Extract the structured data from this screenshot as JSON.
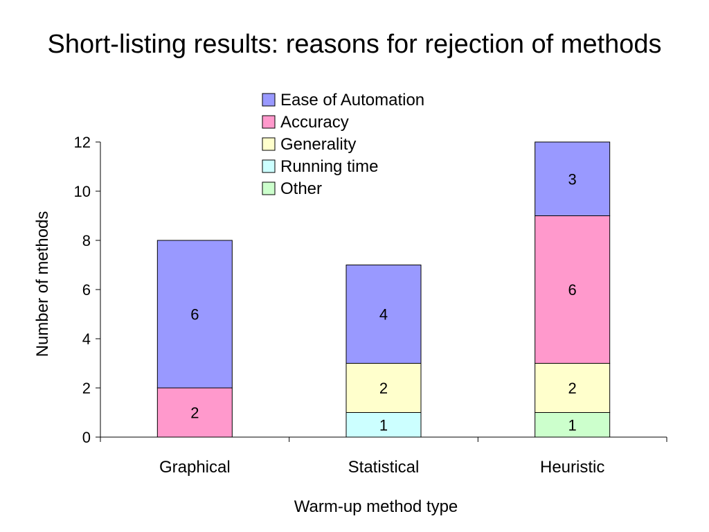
{
  "slide": {
    "title": "Short-listing results: reasons for rejection of methods"
  },
  "chart_data": {
    "type": "bar",
    "stacked": true,
    "title": "",
    "xlabel": "Warm-up method type",
    "ylabel": "Number of methods",
    "categories": [
      "Graphical",
      "Statistical",
      "Heuristic"
    ],
    "ylim": [
      0,
      12
    ],
    "yticks": [
      0,
      2,
      4,
      6,
      8,
      10,
      12
    ],
    "grid": false,
    "legend_position": "top-center",
    "series": [
      {
        "name": "Other",
        "color": "#CCFFCC",
        "values": [
          0,
          0,
          1
        ]
      },
      {
        "name": "Running time",
        "color": "#CCFFFF",
        "values": [
          0,
          1,
          0
        ]
      },
      {
        "name": "Generality",
        "color": "#FFFFCC",
        "values": [
          0,
          2,
          2
        ]
      },
      {
        "name": "Accuracy",
        "color": "#FF99CC",
        "values": [
          2,
          0,
          6
        ]
      },
      {
        "name": "Ease of Automation",
        "color": "#9999FF",
        "values": [
          6,
          4,
          3
        ]
      }
    ],
    "legend_order": [
      "Ease of Automation",
      "Accuracy",
      "Generality",
      "Running time",
      "Other"
    ]
  }
}
